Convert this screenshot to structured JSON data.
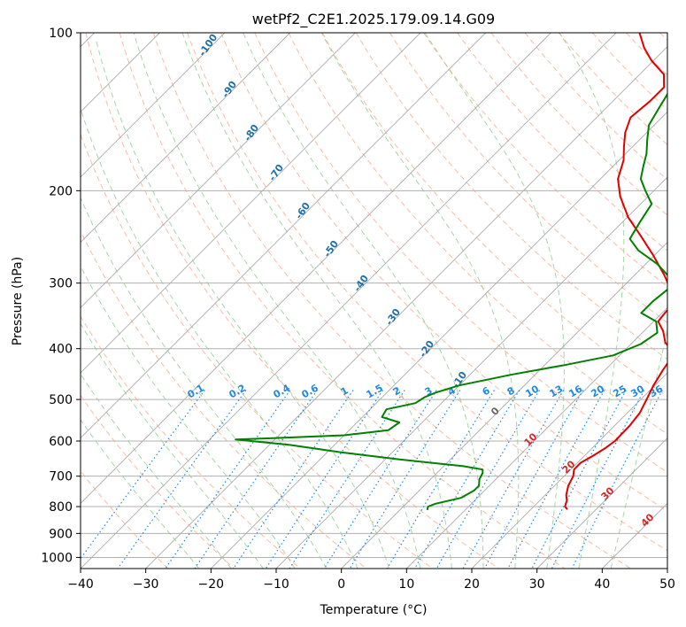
{
  "chart_data": {
    "type": "line",
    "title": "wetPf2_C2E1.2025.179.09.14.G09",
    "xlabel": "Temperature (°C)",
    "ylabel": "Pressure (hPa)",
    "xlim": [
      -40,
      50
    ],
    "ylim": [
      1050,
      100
    ],
    "y_scale": "log",
    "grid": true,
    "x_ticks": [
      "−40",
      "−30",
      "−20",
      "−10",
      "0",
      "10",
      "20",
      "30",
      "40",
      "50"
    ],
    "x_tick_values": [
      -40,
      -30,
      -20,
      -10,
      0,
      10,
      20,
      30,
      40,
      50
    ],
    "y_ticks": [
      "100",
      "200",
      "300",
      "400",
      "500",
      "600",
      "700",
      "800",
      "900",
      "1000"
    ],
    "y_tick_values": [
      100,
      200,
      300,
      400,
      500,
      600,
      700,
      800,
      900,
      1000
    ],
    "colors": {
      "temperature": "#e00000",
      "dewpoint": "#008000",
      "isotherm": "#aaaaaa",
      "dry_adiabat": "#f4a582",
      "moist_adiabat": "#8fcc8f",
      "mixing_ratio": "#1e88e5",
      "moist_label": "#1f6fa8",
      "dry_label": "#d62728",
      "zero_label": "#666666",
      "outer_curve": "#d8b89a"
    },
    "series": [
      {
        "key": "temperature",
        "points": [
          [
            25.6,
            810
          ],
          [
            24.8,
            800
          ],
          [
            24.2,
            780
          ],
          [
            23.2,
            760
          ],
          [
            22.1,
            730
          ],
          [
            21.4,
            700
          ],
          [
            20.5,
            680
          ],
          [
            20.5,
            660
          ],
          [
            21.3,
            640
          ],
          [
            22.0,
            620
          ],
          [
            22.4,
            600
          ],
          [
            22.3,
            560
          ],
          [
            21.9,
            530
          ],
          [
            20.9,
            500
          ],
          [
            19.8,
            470
          ],
          [
            18.9,
            440
          ],
          [
            18.4,
            420
          ],
          [
            17.7,
            405
          ],
          [
            15.1,
            390
          ],
          [
            12.9,
            370
          ],
          [
            10.7,
            355
          ],
          [
            10.4,
            340
          ],
          [
            10.4,
            330
          ],
          [
            8.3,
            312
          ],
          [
            4.6,
            290
          ],
          [
            -0.3,
            265
          ],
          [
            -4.8,
            245
          ],
          [
            -9.8,
            225
          ],
          [
            -14.3,
            205
          ],
          [
            -17.3,
            190
          ],
          [
            -19.3,
            175
          ],
          [
            -21.3,
            165
          ],
          [
            -23.3,
            155
          ],
          [
            -24.8,
            145
          ],
          [
            -24.3,
            135
          ],
          [
            -24.3,
            127
          ],
          [
            -26.3,
            120
          ],
          [
            -30.3,
            113
          ],
          [
            -33.3,
            107
          ],
          [
            -36.4,
            100
          ]
        ]
      },
      {
        "key": "dewpoint",
        "points": [
          [
            4.2,
            812
          ],
          [
            3.8,
            800
          ],
          [
            4.5,
            790
          ],
          [
            7.5,
            770
          ],
          [
            8.4,
            745
          ],
          [
            8.4,
            730
          ],
          [
            7.5,
            710
          ],
          [
            7.0,
            690
          ],
          [
            6.5,
            680
          ],
          [
            3.0,
            670
          ],
          [
            -8.0,
            650
          ],
          [
            -18.0,
            630
          ],
          [
            -27.0,
            610
          ],
          [
            -36.0,
            596
          ],
          [
            -30.0,
            592
          ],
          [
            -20.0,
            585
          ],
          [
            -14.0,
            572
          ],
          [
            -13.5,
            553
          ],
          [
            -17.0,
            540
          ],
          [
            -17.5,
            522
          ],
          [
            -14.0,
            508
          ],
          [
            -13.5,
            495
          ],
          [
            -12.5,
            485
          ],
          [
            -10.0,
            470
          ],
          [
            -3.5,
            448
          ],
          [
            3.0,
            430
          ],
          [
            9.0,
            412
          ],
          [
            11.5,
            392
          ],
          [
            12.3,
            373
          ],
          [
            10.4,
            355
          ],
          [
            6.8,
            342
          ],
          [
            6.8,
            325
          ],
          [
            7.3,
            307
          ],
          [
            5.8,
            293
          ],
          [
            1.8,
            276
          ],
          [
            -3.2,
            260
          ],
          [
            -6.3,
            247
          ],
          [
            -7.3,
            230
          ],
          [
            -8.3,
            212
          ],
          [
            -11.3,
            200
          ],
          [
            -13.8,
            190
          ],
          [
            -15.3,
            180
          ],
          [
            -16.8,
            170
          ],
          [
            -18.8,
            160
          ],
          [
            -20.8,
            150
          ],
          [
            -21.8,
            140
          ],
          [
            -22.8,
            130
          ],
          [
            -24.3,
            122
          ],
          [
            -25.8,
            112
          ],
          [
            -27.8,
            103
          ],
          [
            -28.8,
            100
          ]
        ]
      }
    ],
    "moist_adiabat_labels": [
      "-100",
      "-90",
      "-80",
      "-70",
      "-60",
      "-50",
      "-40",
      "-30",
      "-20",
      "-10"
    ],
    "mixing_ratio_labels": [
      "0.1",
      "0.2",
      "0.4",
      "0.6",
      "1",
      "1.5",
      "2",
      "3",
      "4",
      "6",
      "8",
      "10",
      "13",
      "16",
      "20",
      "25",
      "30",
      "36"
    ],
    "dry_adiabat_labels": [
      "0",
      "10",
      "20",
      "30",
      "40"
    ]
  }
}
